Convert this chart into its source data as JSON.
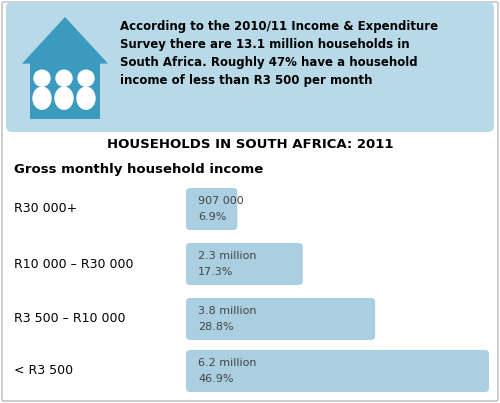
{
  "title": "HOUSEHOLDS IN SOUTH AFRICA: 2011",
  "subtitle": "Gross monthly household income",
  "info_text": "According to the 2010/11 Income & Expenditure\nSurvey there are 13.1 million households in\nSouth Africa. Roughly 47% have a household\nincome of less than R3 500 per month",
  "categories": [
    "R30 000+",
    "R10 000 – R30 000",
    "R3 500 – R10 000",
    "< R3 500"
  ],
  "values": [
    6.9,
    17.3,
    28.8,
    46.9
  ],
  "labels_line1": [
    "907 000",
    "2.3 million",
    "3.8 million",
    "6.2 million"
  ],
  "labels_line2": [
    "6.9%",
    "17.3%",
    "28.8%",
    "46.9%"
  ],
  "max_value": 46.9,
  "bar_color": "#aacfe0",
  "info_box_color": "#b8d9e8",
  "house_color": "#3a9bbf",
  "background_color": "#ffffff",
  "outer_border_color": "#cccccc",
  "title_fontsize": 9.5,
  "subtitle_fontsize": 9.5,
  "category_fontsize": 9,
  "label_fontsize": 8,
  "info_fontsize": 8.5
}
